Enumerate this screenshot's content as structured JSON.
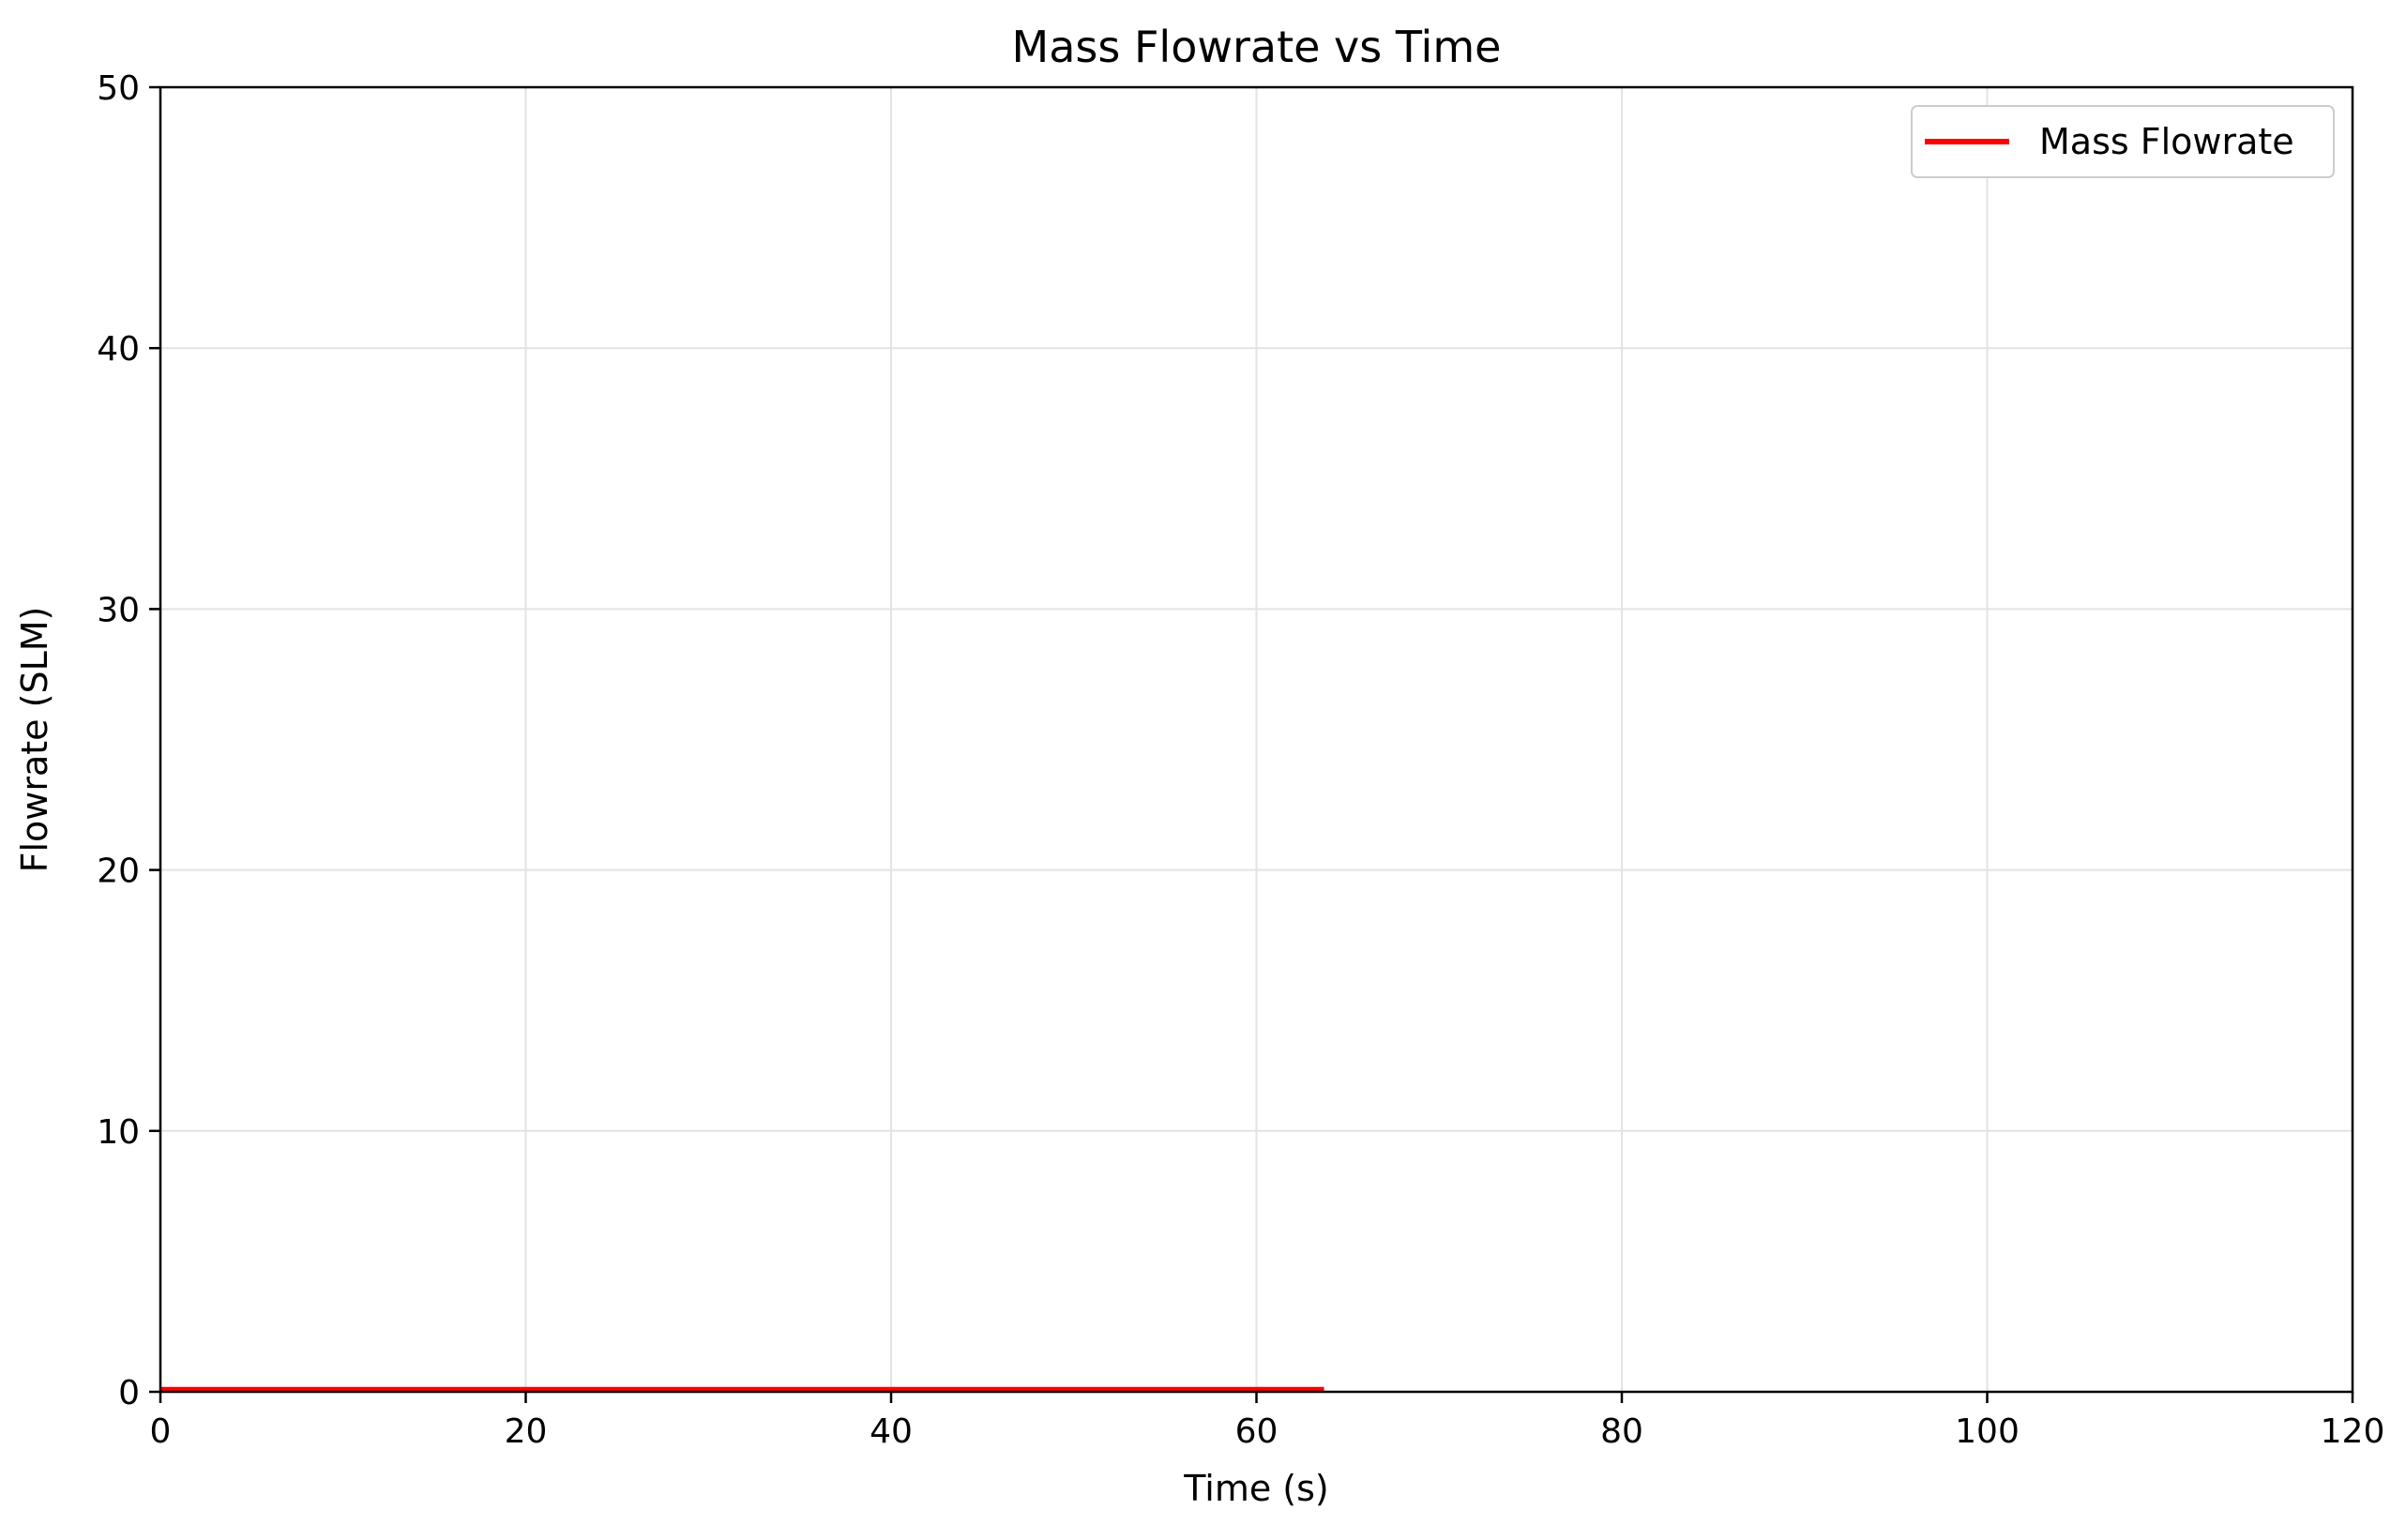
{
  "chart_data": {
    "type": "line",
    "title": "Mass Flowrate vs Time",
    "xlabel": "Time (s)",
    "ylabel": "Flowrate (SLM)",
    "xlim": [
      0,
      120
    ],
    "ylim": [
      0,
      50
    ],
    "xticks": [
      "0",
      "20",
      "40",
      "60",
      "80",
      "100",
      "120"
    ],
    "yticks": [
      "0",
      "10",
      "20",
      "30",
      "40",
      "50"
    ],
    "grid": true,
    "legend_position": "top-right",
    "series": [
      {
        "name": "Mass Flowrate",
        "color": "#ff0000",
        "x": [
          0,
          63.7
        ],
        "y": [
          0.1,
          0.1
        ]
      }
    ]
  }
}
